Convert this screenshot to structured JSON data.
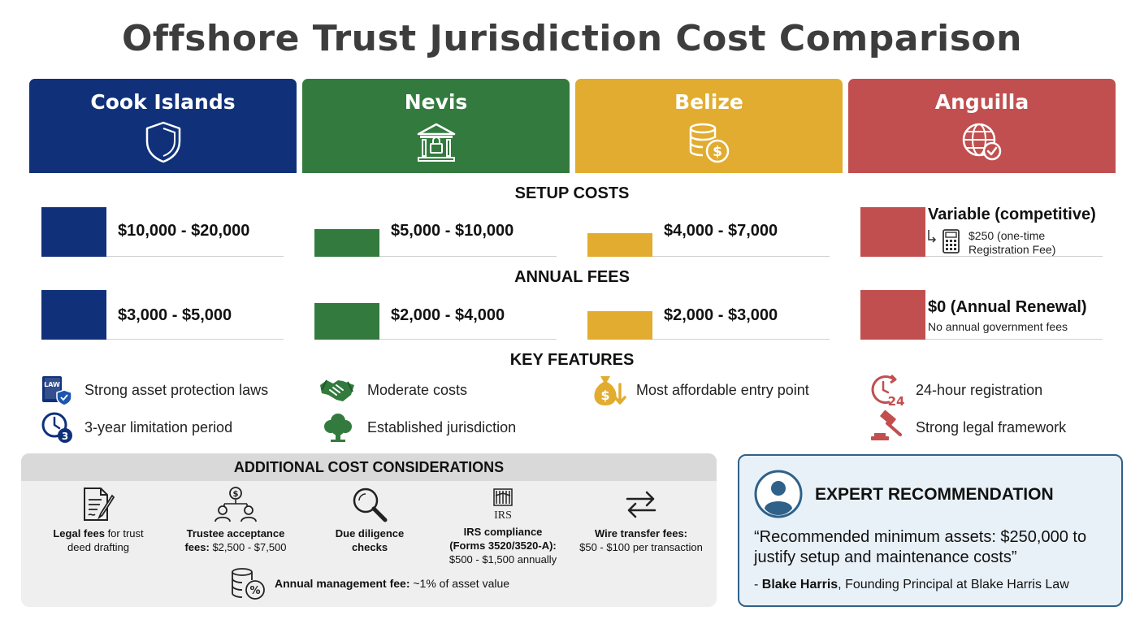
{
  "title": "Offshore Trust Jurisdiction Cost Comparison",
  "colors": {
    "cook": "#10317a",
    "nevis": "#337a3e",
    "belize": "#e1ac2f",
    "anguilla": "#c14f4f"
  },
  "jurisdictions": [
    {
      "name": "Cook Islands",
      "icon": "shield-icon"
    },
    {
      "name": "Nevis",
      "icon": "bank-lock-icon"
    },
    {
      "name": "Belize",
      "icon": "coin-stack-dollar-icon"
    },
    {
      "name": "Anguilla",
      "icon": "globe-check-icon"
    }
  ],
  "sections": {
    "setup": "SETUP COSTS",
    "annual": "ANNUAL FEES",
    "features": "KEY FEATURES"
  },
  "setup_costs": [
    {
      "amount": "$10,000 - $20,000"
    },
    {
      "amount": "$5,000 - $10,000"
    },
    {
      "amount": "$4,000 - $7,000"
    },
    {
      "amount": "Variable (competitive)",
      "note": "$250 (one-time",
      "note2": "Registration Fee)"
    }
  ],
  "annual_fees": [
    {
      "amount": "$3,000 - $5,000"
    },
    {
      "amount": "$2,000 - $4,000"
    },
    {
      "amount": "$2,000 - $3,000"
    },
    {
      "amount": "$0 (Annual Renewal)",
      "note": "No annual government fees"
    }
  ],
  "features": {
    "cook": [
      "Strong asset protection laws",
      "3-year limitation period"
    ],
    "nevis": [
      "Moderate costs",
      "Established jurisdiction"
    ],
    "belize": [
      "Most affordable entry point"
    ],
    "anguilla": [
      "24-hour registration",
      "Strong legal framework"
    ],
    "icon_labels": {
      "law_book": "LAW",
      "clock_number": "3",
      "registration_number": "24"
    }
  },
  "additional": {
    "heading": "ADDITIONAL COST CONSIDERATIONS",
    "legal_bold": "Legal fees",
    "legal_rest": " for trust",
    "legal_line2": "deed drafting",
    "trustee_bold1": "Trustee acceptance",
    "trustee_bold2": "fees:",
    "trustee_rest": " $2,500 - $7,500",
    "due_line1": "Due diligence",
    "due_line2": "checks",
    "irs_icon_label": "IRS",
    "irs_line1": "IRS compliance",
    "irs_line2": "(Forms 3520/3520-A):",
    "irs_line3": "$500 - $1,500 annually",
    "wire_bold": "Wire transfer fees:",
    "wire_rest": "$50 - $100 per transaction",
    "mgmt_bold": "Annual management fee:",
    "mgmt_rest": " ~1% of asset value"
  },
  "expert": {
    "heading": "EXPERT RECOMMENDATION",
    "quote": "“Recommended minimum assets: $250,000 to justify setup and maintenance costs”",
    "attrib_prefix": "- ",
    "attrib_name": "Blake Harris",
    "attrib_rest": ", Founding Principal at Blake Harris Law"
  }
}
